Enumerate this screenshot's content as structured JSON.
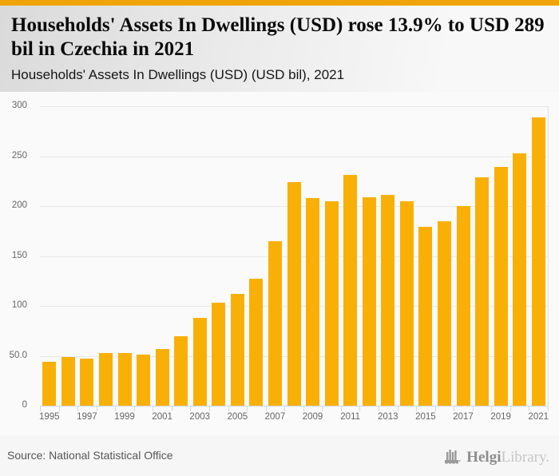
{
  "header": {
    "title": "Households' Assets In Dwellings (USD) rose 13.9% to USD 289 bil in Czechia in 2021",
    "subtitle": "Households' Assets In Dwellings (USD) (USD bil), 2021",
    "accent_color": "#f0a40a"
  },
  "chart_data": {
    "type": "bar",
    "title": "Households' Assets In Dwellings (USD) (USD bil), 2021",
    "categories": [
      1995,
      1996,
      1997,
      1998,
      1999,
      2000,
      2001,
      2002,
      2003,
      2004,
      2005,
      2006,
      2007,
      2008,
      2009,
      2010,
      2011,
      2012,
      2013,
      2014,
      2015,
      2016,
      2017,
      2018,
      2019,
      2020,
      2021
    ],
    "values": [
      44,
      49,
      47,
      53,
      53,
      51,
      57,
      70,
      88,
      103,
      112,
      127,
      165,
      224,
      208,
      205,
      231,
      209,
      211,
      205,
      179,
      185,
      200,
      229,
      239,
      253,
      289
    ],
    "bar_color": "#f9b006",
    "ylim": [
      0,
      300
    ],
    "ytick_values": [
      0,
      50,
      100,
      150,
      200,
      250,
      300
    ],
    "ytick_labels": [
      "0",
      "50.0",
      "100",
      "150",
      "200",
      "250",
      "300"
    ],
    "xlabel_every": 2,
    "grid": "horizontal",
    "legend": "none",
    "xlabel": "",
    "ylabel": ""
  },
  "footer": {
    "source": "Source: National Statistical Office",
    "logo": {
      "brand_bold": "Helgi",
      "brand_light": "Library."
    }
  }
}
